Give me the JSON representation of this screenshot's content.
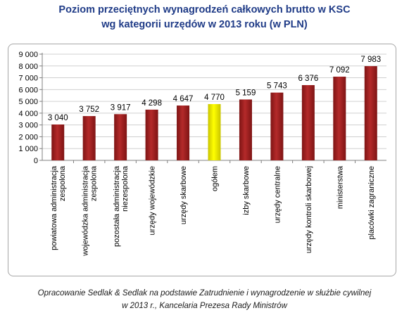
{
  "title": {
    "line1": "Poziom przeciętnych wynagrodzeń całkowych brutto w KSC",
    "line2": "wg kategorii urzędów w 2013 roku (w PLN)"
  },
  "caption": {
    "line1": "Opracowanie Sedlak & Sedlak na podstawie Zatrudnienie i wynagrodzenie w służbie cywilnej",
    "line2": "w 2013 r., Kancelaria Prezesa Rady Ministrów"
  },
  "colors": {
    "bar": "#b42a2a",
    "bar_dark": "#7e1414",
    "bar_highlight": "#ffff00",
    "bar_highlight_dark": "#c9c400",
    "gridline": "#d0d0d0",
    "axis": "#808080",
    "text": "#000000"
  },
  "chart_data": {
    "type": "bar",
    "categories": [
      "powiatowa administracja zespolona",
      "wojewódzka administracja zespolona",
      "pozostała administracja niezespolona",
      "urzędy wojewódzkie",
      "urzędy skarbowe",
      "ogółem",
      "izby skarbowe",
      "urzędy centralne",
      "urzędy kontroli skarbowej",
      "ministerstwa",
      "placówki zagraniczne"
    ],
    "category_lines": [
      [
        "powiatowa administracja",
        "zespolona"
      ],
      [
        "wojewódzka administracja",
        "zespolona"
      ],
      [
        "pozostała administracja",
        "niezespolona"
      ],
      [
        "urzędy wojewódzkie"
      ],
      [
        "urzędy skarbowe"
      ],
      [
        "ogółem"
      ],
      [
        "izby skarbowe"
      ],
      [
        "urzędy centralne"
      ],
      [
        "urzędy kontroli skarbowej"
      ],
      [
        "ministerstwa"
      ],
      [
        "placówki zagraniczne"
      ]
    ],
    "values": [
      3040,
      3752,
      3917,
      4298,
      4647,
      4770,
      5159,
      5743,
      6376,
      7092,
      7983
    ],
    "value_labels": [
      "3 040",
      "3 752",
      "3 917",
      "4 298",
      "4 647",
      "4 770",
      "5 159",
      "5 743",
      "6 376",
      "7 092",
      "7 983"
    ],
    "highlight_category": "ogółem",
    "yticks": [
      0,
      1000,
      2000,
      3000,
      4000,
      5000,
      6000,
      7000,
      8000,
      9000
    ],
    "ytick_labels": [
      "0",
      "1 000",
      "2 000",
      "3 000",
      "4 000",
      "5 000",
      "6 000",
      "7 000",
      "8 000",
      "9 000"
    ],
    "ylim": [
      0,
      9000
    ],
    "grid": true,
    "legend": "none"
  }
}
